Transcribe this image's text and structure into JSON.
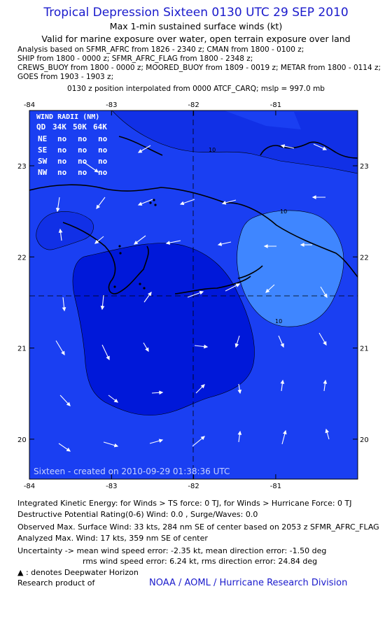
{
  "header": {
    "title": "Tropical Depression Sixteen 0130 UTC 29 SEP 2010",
    "subtitle": "Max 1-min sustained surface winds (kt)",
    "validity": "Valid for marine exposure over water, open terrain exposure over land",
    "analysis_lines": [
      "Analysis based on SFMR_AFRC from 1826 - 2340 z; CMAN from 1800 - 0100 z;",
      "SHIP from 1800 - 0000 z; SFMR_AFRC_FLAG from 1800 - 2348 z;",
      "CREWS_BUOY from 1800 - 0000 z; MOORED_BUOY from 1809 - 0019 z; METAR from 1800 - 0114 z;",
      "GOES from 1903 - 1903 z;"
    ],
    "position_note": "0130 z position interpolated from 0000 ATCF_CARQ; mslp = 997.0 mb"
  },
  "map": {
    "lon_labels": [
      "-84",
      "-83",
      "-82",
      "-81"
    ],
    "lon_values": [
      -84,
      -83,
      -82,
      -81
    ],
    "lat_labels": [
      "23",
      "22",
      "21",
      "20"
    ],
    "lat_values": [
      23,
      22,
      21,
      20
    ],
    "center": {
      "lon": -82.0,
      "lat": 21.58
    },
    "contour_labels": [
      "10",
      "10",
      "10"
    ],
    "colors": {
      "water_background": "#1a3ff2",
      "region_lt10": "#1130e6",
      "region_inner": "#0018d9",
      "region_gt10": "#3f86ff",
      "coastline": "#000000",
      "arrows": "#ffffff"
    },
    "wind_radii": {
      "title": "WIND RADII (NM)",
      "header": [
        "QD",
        "34K",
        "50K",
        "64K"
      ],
      "rows": [
        [
          "NE",
          "no",
          "no",
          "no"
        ],
        [
          "SE",
          "no",
          "no",
          "no"
        ],
        [
          "SW",
          "no",
          "no",
          "no"
        ],
        [
          "NW",
          "no",
          "no",
          "no"
        ]
      ]
    },
    "footer_text": "Sixteen - created on 2010-09-29 01:38:36 UTC"
  },
  "stats": {
    "ike": "Integrated Kinetic Energy:  for Winds > TS force: 0 TJ,  for Winds > Hurricane Force: 0 TJ",
    "dpr": "Destructive Potential Rating(0-6)   Wind: 0.0 , Surge/Waves: 0.0",
    "observed_max": "Observed Max. Surface Wind: 33 kts, 284 nm SE of center based on 2053 z SFMR_AFRC_FLAG",
    "analyzed_max": "Analyzed Max. Wind: 17 kts, 359 nm SE of center",
    "uncertainty_1": "Uncertainty -> mean wind speed error:  -2.35 kt,   mean direction error:  -1.50 deg",
    "uncertainty_2": "rms wind speed error:  6.24 kt,   rms direction error: 24.84 deg",
    "legend_symbol": "▲",
    "legend_text": " : denotes Deepwater Horizon",
    "research_label": "Research product of",
    "credit": "NOAA / AOML / Hurricane Research Division"
  }
}
